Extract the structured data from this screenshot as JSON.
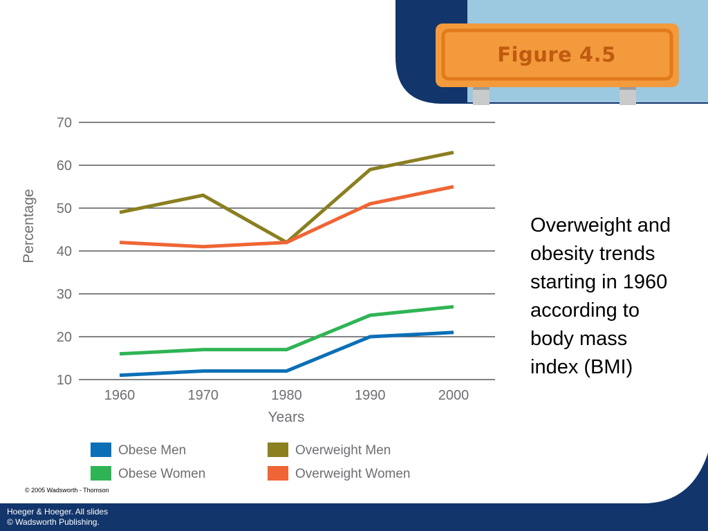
{
  "sign": {
    "label": "Figure 4.5"
  },
  "caption": {
    "lines": [
      "Overweight and",
      "obesity trends",
      "starting in 1960",
      "according to",
      "body mass",
      "index (BMI)"
    ]
  },
  "copyright": "© 2005 Wadsworth - Thomson",
  "footer": {
    "line1": "Hoeger & Hoeger. All slides",
    "line2": "© Wadsworth Publishing."
  },
  "colors": {
    "navy": "#12356b",
    "light_blue": "#9cc8e0",
    "sign_orange": "#f39a3c",
    "sign_border": "#e07b1c",
    "obese_men": "#0b6fb6",
    "obese_women": "#2fb455",
    "overweight_men": "#8a7f21",
    "overweight_women": "#ef6535"
  },
  "chart_data": {
    "type": "line",
    "xlabel": "Years",
    "ylabel": "Percentage",
    "x": [
      1960,
      1970,
      1980,
      1990,
      2000
    ],
    "ylim": [
      10,
      70
    ],
    "yticks": [
      10,
      20,
      30,
      40,
      50,
      60,
      70
    ],
    "grid": true,
    "legend_position": "bottom",
    "series": [
      {
        "name": "Obese Men",
        "values": [
          11,
          12,
          12,
          20,
          21
        ],
        "color": "#0b6fb6"
      },
      {
        "name": "Obese Women",
        "values": [
          16,
          17,
          17,
          25,
          27
        ],
        "color": "#2fb455"
      },
      {
        "name": "Overweight Men",
        "values": [
          49,
          53,
          42,
          59,
          63
        ],
        "color": "#8a7f21"
      },
      {
        "name": "Overweight Women",
        "values": [
          42,
          41,
          42,
          51,
          55
        ],
        "color": "#ef6535"
      }
    ]
  }
}
